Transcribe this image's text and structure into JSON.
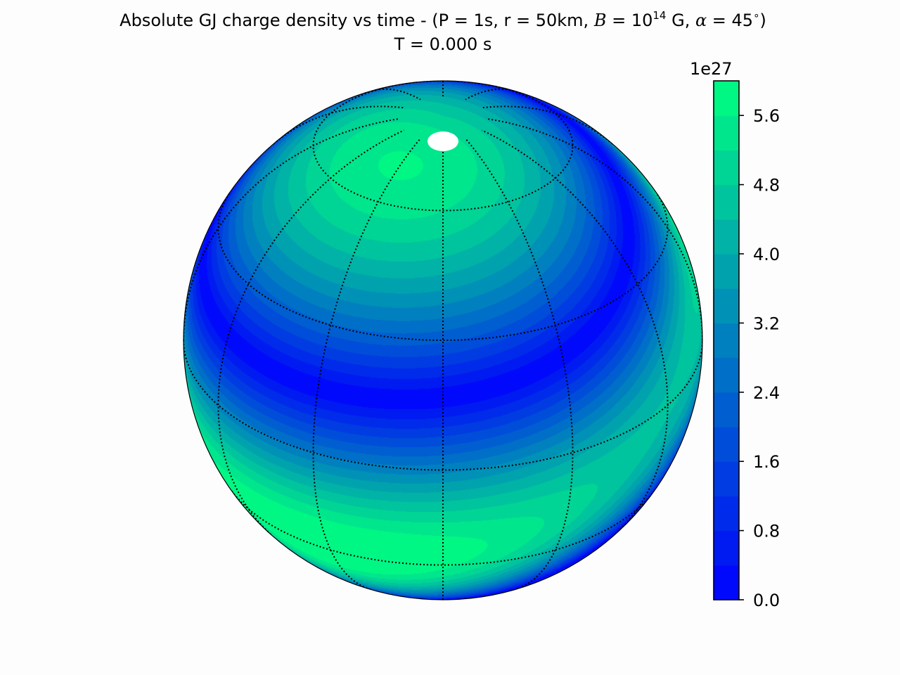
{
  "chart_data": {
    "type": "heatmap",
    "projection": "orthographic",
    "title": {
      "prefix": "Absolute GJ charge density vs time - (P = 1s, r = 50km, ",
      "b_symbol": "B",
      "b_eq": " = 10",
      "b_exp": "14",
      "b_unit": " G, ",
      "alpha_symbol": "α",
      "alpha_eq": " = 45",
      "alpha_deg": "∘",
      "suffix": ")"
    },
    "subtitle": "T = 0.000 s",
    "colorbar": {
      "multiplier_label": "1e27",
      "range": [
        0.0,
        6.0
      ],
      "tick_labels": [
        "0.0",
        "0.8",
        "1.6",
        "2.4",
        "3.2",
        "4.0",
        "4.8",
        "5.6"
      ],
      "colormap": "winter",
      "color_min": "#0000ff",
      "color_max": "#00ff80",
      "levels": 15
    },
    "globe": {
      "view_latitude_deg": 30,
      "view_longitude_deg": 0,
      "graticule_latitudes_deg": [
        -30,
        0,
        30,
        60
      ],
      "graticule_longitude_step_deg": 30,
      "graticule_style": "dotted",
      "magnetic_axis_inclination_deg": 45
    }
  }
}
